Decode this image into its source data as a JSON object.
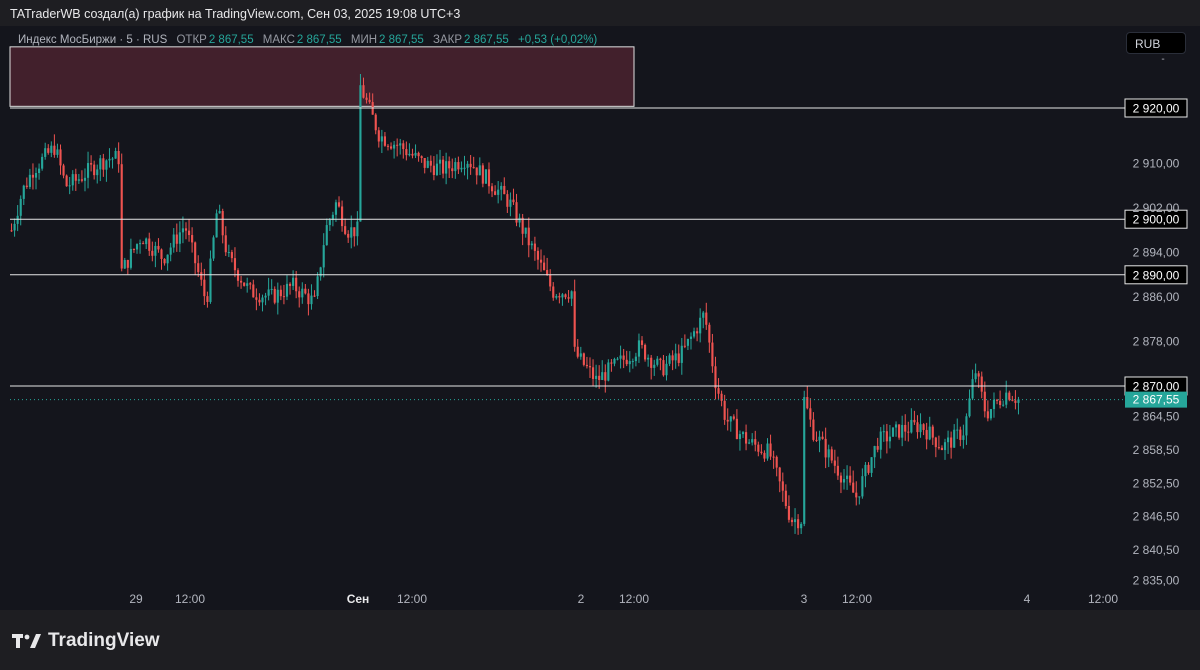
{
  "caption": "TATraderWB создал(а) график на TradingView.com, Сен 03, 2025 19:08 UTC+3",
  "legend": {
    "symbol": "Индекс МосБиржи · 5 · RUS",
    "open_label": "ОТКР",
    "open": "2 867,55",
    "high_label": "МАКС",
    "high": "2 867,55",
    "low_label": "МИН",
    "low": "2 867,55",
    "close_label": "ЗАКР",
    "close": "2 867,55",
    "change": "+0,53 (+0,02%)"
  },
  "currency": "RUB",
  "brand": "TradingView",
  "colors": {
    "up": "#26a69a",
    "down": "#ef5350",
    "zone": "#4a222f",
    "bg": "#14151c"
  },
  "chart_data": {
    "type": "candlestick",
    "y_ticks": [
      "2 910,00",
      "2 902,00",
      "2 894,00",
      "2 886,00",
      "2 878,00",
      "2 864,50",
      "2 858,50",
      "2 852,50",
      "2 846,50",
      "2 840,50",
      "2 835,00"
    ],
    "y_tick_values": [
      2910,
      2902,
      2894,
      2886,
      2878,
      2864.5,
      2858.5,
      2852.5,
      2846.5,
      2840.5,
      2835
    ],
    "ylim": [
      2834,
      2933
    ],
    "x_ticks": [
      "29",
      "12:00",
      "Сен",
      "12:00",
      "2",
      "12:00",
      "3",
      "12:00",
      "4",
      "12:00"
    ],
    "levels": [
      {
        "value": 2920,
        "label": "2 920,00"
      },
      {
        "value": 2900,
        "label": "2 900,00"
      },
      {
        "value": 2890,
        "label": "2 890,00"
      },
      {
        "value": 2870,
        "label": "2 870,00"
      }
    ],
    "last_price": {
      "value": 2867.55,
      "label": "2 867,55"
    },
    "zone": {
      "from": 2920.3,
      "to": 2931
    },
    "price_path": [
      [
        0,
        2898
      ],
      [
        0.5,
        2905
      ],
      [
        1,
        2909
      ],
      [
        2,
        2913
      ],
      [
        2.5,
        2906
      ],
      [
        3,
        2907
      ],
      [
        4,
        2910
      ],
      [
        4.5,
        2911
      ],
      [
        5,
        2890
      ],
      [
        6,
        2897
      ],
      [
        7,
        2893
      ],
      [
        8,
        2899
      ],
      [
        9,
        2885
      ],
      [
        9.5,
        2902
      ],
      [
        10,
        2893
      ],
      [
        11,
        2887
      ],
      [
        12,
        2886
      ],
      [
        13,
        2888
      ],
      [
        14,
        2885
      ],
      [
        14.5,
        2898
      ],
      [
        15,
        2903
      ],
      [
        15.5,
        2898
      ],
      [
        16,
        2925
      ],
      [
        17,
        2915
      ],
      [
        18,
        2913
      ],
      [
        19,
        2910
      ],
      [
        20,
        2909
      ],
      [
        21,
        2911
      ],
      [
        22,
        2907
      ],
      [
        23,
        2903
      ],
      [
        24,
        2895
      ],
      [
        25,
        2887
      ],
      [
        26,
        2876
      ],
      [
        27,
        2871
      ],
      [
        28,
        2874
      ],
      [
        29,
        2877
      ],
      [
        30,
        2873
      ],
      [
        31,
        2876
      ],
      [
        32,
        2883
      ],
      [
        32.5,
        2871
      ],
      [
        33,
        2864
      ],
      [
        34,
        2860
      ],
      [
        35,
        2858
      ],
      [
        36,
        2846
      ],
      [
        36.5,
        2869
      ],
      [
        37,
        2862
      ],
      [
        38,
        2856
      ],
      [
        39,
        2850
      ],
      [
        40,
        2860
      ],
      [
        41,
        2862
      ],
      [
        42,
        2863
      ],
      [
        43,
        2859
      ],
      [
        44,
        2862
      ],
      [
        44.5,
        2873
      ],
      [
        45,
        2865
      ],
      [
        46,
        2869
      ],
      [
        46.5,
        2867.55
      ]
    ]
  }
}
